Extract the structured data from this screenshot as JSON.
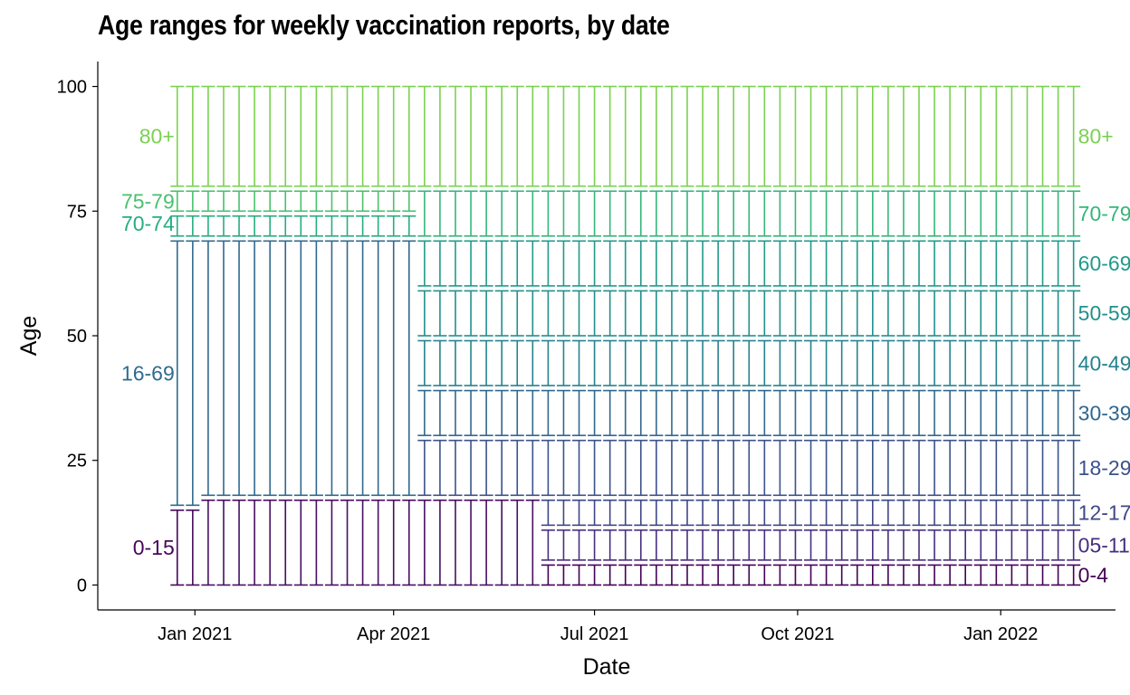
{
  "chart_data": {
    "type": "errorbar",
    "title": "Age ranges for weekly vaccination reports, by date",
    "xlabel": "Date",
    "ylabel": "Age",
    "ylim": [
      -5,
      105
    ],
    "xlim": [
      "2020-11-18",
      "2022-02-22"
    ],
    "x_ticks": [
      {
        "date": "2021-01-01",
        "label": "Jan 2021"
      },
      {
        "date": "2021-04-01",
        "label": "Apr 2021"
      },
      {
        "date": "2021-07-01",
        "label": "Jul 2021"
      },
      {
        "date": "2021-10-01",
        "label": "Oct 2021"
      },
      {
        "date": "2022-01-01",
        "label": "Jan 2022"
      }
    ],
    "y_ticks": [
      0,
      25,
      50,
      75,
      100
    ],
    "grid": false,
    "legend": "none",
    "report_dates": {
      "first": "2020-12-24",
      "interval_days": 7,
      "count": 59
    },
    "periods": [
      {
        "from_week": 0,
        "to_week": 1,
        "ranges": [
          [
            0,
            15,
            "0-15"
          ],
          [
            16,
            69,
            "16-69"
          ],
          [
            70,
            74,
            "70-74"
          ],
          [
            75,
            79,
            "75-79"
          ],
          [
            80,
            100,
            "80+"
          ]
        ]
      },
      {
        "from_week": 2,
        "to_week": 15,
        "ranges": [
          [
            0,
            17,
            "0-17"
          ],
          [
            18,
            69,
            "18-69"
          ],
          [
            70,
            74,
            "70-74"
          ],
          [
            75,
            79,
            "75-79"
          ],
          [
            80,
            100,
            "80+"
          ]
        ]
      },
      {
        "from_week": 16,
        "to_week": 23,
        "ranges": [
          [
            0,
            17,
            "0-17"
          ],
          [
            18,
            29,
            "18-29"
          ],
          [
            30,
            39,
            "30-39"
          ],
          [
            40,
            49,
            "40-49"
          ],
          [
            50,
            59,
            "50-59"
          ],
          [
            60,
            69,
            "60-69"
          ],
          [
            70,
            79,
            "70-79"
          ],
          [
            80,
            100,
            "80+"
          ]
        ]
      },
      {
        "from_week": 24,
        "to_week": 58,
        "ranges": [
          [
            0,
            4,
            "0-4"
          ],
          [
            5,
            11,
            "05-11"
          ],
          [
            12,
            17,
            "12-17"
          ],
          [
            18,
            29,
            "18-29"
          ],
          [
            30,
            39,
            "30-39"
          ],
          [
            40,
            49,
            "40-49"
          ],
          [
            50,
            59,
            "50-59"
          ],
          [
            60,
            69,
            "60-69"
          ],
          [
            70,
            79,
            "70-79"
          ],
          [
            80,
            100,
            "80+"
          ]
        ]
      }
    ],
    "colors": {
      "0-4": "#440154",
      "0-15": "#46075a",
      "0-17": "#470f62",
      "05-11": "#462f7e",
      "12-17": "#3f4788",
      "16-69": "#2f6b8e",
      "18-29": "#3b528b",
      "18-69": "#31688e",
      "30-39": "#31688e",
      "40-49": "#26828e",
      "50-59": "#21908d",
      "60-69": "#1f9a8a",
      "70-74": "#27ad81",
      "70-79": "#35b779",
      "75-79": "#4ac16d",
      "80+": "#7ad151"
    },
    "left_labels": [
      {
        "label": "80+",
        "y": 90
      },
      {
        "label": "75-79",
        "y": 77
      },
      {
        "label": "70-74",
        "y": 72.5
      },
      {
        "label": "16-69",
        "y": 42.5
      },
      {
        "label": "0-15",
        "y": 7.5
      }
    ],
    "right_labels": [
      {
        "label": "80+",
        "y": 90
      },
      {
        "label": "70-79",
        "y": 74.5
      },
      {
        "label": "60-69",
        "y": 64.5
      },
      {
        "label": "50-59",
        "y": 54.5
      },
      {
        "label": "40-49",
        "y": 44.5
      },
      {
        "label": "30-39",
        "y": 34.5
      },
      {
        "label": "18-29",
        "y": 23.5
      },
      {
        "label": "12-17",
        "y": 14.5
      },
      {
        "label": "05-11",
        "y": 8
      },
      {
        "label": "0-4",
        "y": 2
      }
    ]
  }
}
